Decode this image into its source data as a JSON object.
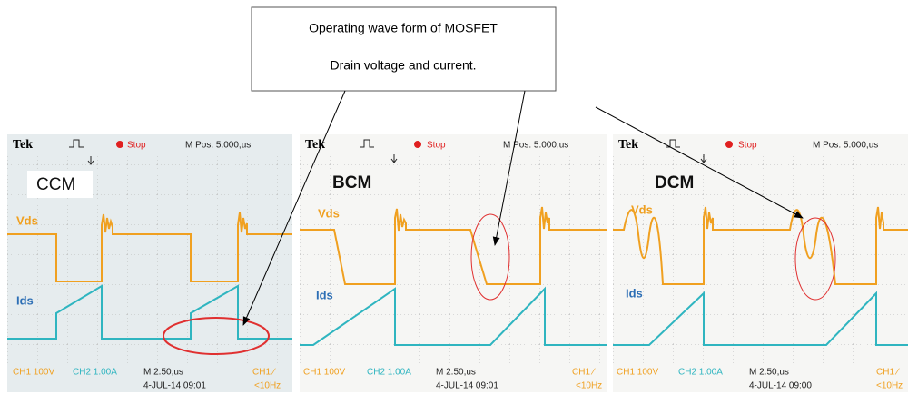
{
  "callout": {
    "lines": [
      "Operating wave form of MOSFET",
      "Drain voltage and current."
    ]
  },
  "panels": [
    {
      "mode": "CCM",
      "brand": "Tek",
      "status": "Stop",
      "position": "M Pos: 5.000,us",
      "ch1": "Vds",
      "ch2": "Ids",
      "footer": {
        "ch1": "CH1 100V",
        "ch2": "CH2 1.00A",
        "timebase": "M 2.50,us",
        "date": "4-JUL-14 09:01",
        "trigger": "CH1 ∕",
        "freq": "<10Hz"
      }
    },
    {
      "mode": "BCM",
      "brand": "Tek",
      "status": "Stop",
      "position": "M Pos: 5.000,us",
      "ch1": "Vds",
      "ch2": "Ids",
      "footer": {
        "ch1": "CH1 100V",
        "ch2": "CH2 1.00A",
        "timebase": "M 2.50,us",
        "date": "4-JUL-14 09:01",
        "trigger": "CH1 ∕",
        "freq": "<10Hz"
      }
    },
    {
      "mode": "DCM",
      "brand": "Tek",
      "status": "Stop",
      "position": "M Pos: 5.000,us",
      "ch1": "Vds",
      "ch2": "Ids",
      "footer": {
        "ch1": "CH1 100V",
        "ch2": "CH2 1.00A",
        "timebase": "M 2.50,us",
        "date": "4-JUL-14 09:00",
        "trigger": "CH1 ∕",
        "freq": "<10Hz"
      }
    }
  ]
}
